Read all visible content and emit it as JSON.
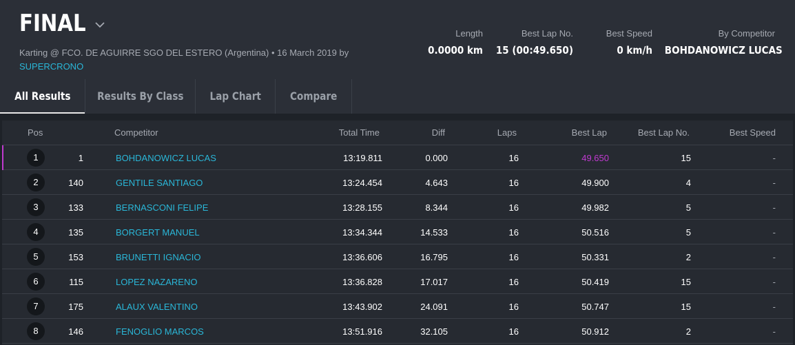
{
  "event": {
    "title": "FINAL",
    "subtitle_main": "Karting @ FCO. DE AGUIRRE SGO DEL ESTERO (Argentina) • 16 March 2019 by",
    "subtitle_link": "SUPERCRONO"
  },
  "stats": [
    {
      "label": "Length",
      "value": "0.0000 km"
    },
    {
      "label": "Best Lap No.",
      "value": "15 (00:49.650)"
    },
    {
      "label": "Best Speed",
      "value": "0 km/h"
    },
    {
      "label": "By Competitor",
      "value": "BOHDANOWICZ LUCAS"
    }
  ],
  "tabs": [
    "All Results",
    "Results By Class",
    "Lap Chart",
    "Compare"
  ],
  "columns": {
    "pos": "Pos",
    "competitor": "Competitor",
    "total_time": "Total Time",
    "diff": "Diff",
    "laps": "Laps",
    "best_lap": "Best Lap",
    "best_lap_no": "Best Lap No.",
    "best_speed": "Best Speed"
  },
  "rows": [
    {
      "pos": "1",
      "num": "1",
      "name": "BOHDANOWICZ LUCAS",
      "total": "13:19.811",
      "diff": "0.000",
      "laps": "16",
      "best": "49.650",
      "best_no": "15",
      "speed": "-"
    },
    {
      "pos": "2",
      "num": "140",
      "name": "GENTILE SANTIAGO",
      "total": "13:24.454",
      "diff": "4.643",
      "laps": "16",
      "best": "49.900",
      "best_no": "4",
      "speed": "-"
    },
    {
      "pos": "3",
      "num": "133",
      "name": "BERNASCONI FELIPE",
      "total": "13:28.155",
      "diff": "8.344",
      "laps": "16",
      "best": "49.982",
      "best_no": "5",
      "speed": "-"
    },
    {
      "pos": "4",
      "num": "135",
      "name": "BORGERT MANUEL",
      "total": "13:34.344",
      "diff": "14.533",
      "laps": "16",
      "best": "50.516",
      "best_no": "5",
      "speed": "-"
    },
    {
      "pos": "5",
      "num": "153",
      "name": "BRUNETTI IGNACIO",
      "total": "13:36.606",
      "diff": "16.795",
      "laps": "16",
      "best": "50.331",
      "best_no": "2",
      "speed": "-"
    },
    {
      "pos": "6",
      "num": "115",
      "name": "LOPEZ NAZARENO",
      "total": "13:36.828",
      "diff": "17.017",
      "laps": "16",
      "best": "50.419",
      "best_no": "15",
      "speed": "-"
    },
    {
      "pos": "7",
      "num": "175",
      "name": "ALAUX VALENTINO",
      "total": "13:43.902",
      "diff": "24.091",
      "laps": "16",
      "best": "50.747",
      "best_no": "15",
      "speed": "-"
    },
    {
      "pos": "8",
      "num": "146",
      "name": "FENOGLIO MARCOS",
      "total": "13:51.916",
      "diff": "32.105",
      "laps": "16",
      "best": "50.912",
      "best_no": "2",
      "speed": "-"
    }
  ],
  "colors": {
    "accent_link": "#2ab7d8",
    "best_lap_highlight": "#c03ad0",
    "header_bg": "#2b2f37",
    "table_bg": "#262a31"
  },
  "icons": {
    "title_dropdown": "chevron-down-icon"
  }
}
